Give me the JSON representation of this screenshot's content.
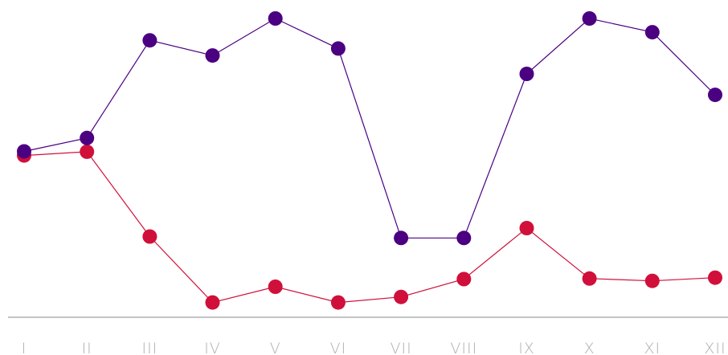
{
  "chart_data": {
    "type": "line",
    "title": "",
    "xlabel": "",
    "ylabel": "",
    "categories": [
      "I",
      "II",
      "III",
      "IV",
      "V",
      "VI",
      "VII",
      "VIII",
      "IX",
      "X",
      "XI",
      "XII"
    ],
    "ylim": [
      0,
      100
    ],
    "grid": false,
    "legend": "none",
    "series": [
      {
        "color": "#4b0082",
        "values": [
          54.4,
          59.0,
          92.5,
          87.3,
          100.0,
          89.7,
          24.7,
          24.7,
          81.0,
          100.0,
          95.3,
          73.8
        ]
      },
      {
        "color": "#d0103a",
        "values": [
          53.0,
          54.3,
          25.2,
          2.6,
          8.0,
          2.6,
          4.5,
          10.6,
          28.1,
          10.8,
          10.0,
          11.1
        ]
      }
    ],
    "styles": {
      "axis_color": "#888888",
      "tick_label_color": "#b0b0b0"
    }
  }
}
